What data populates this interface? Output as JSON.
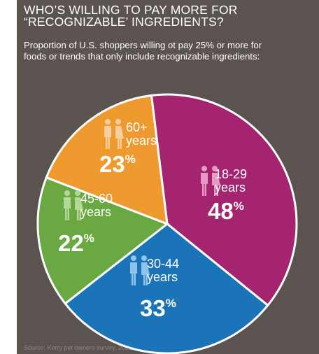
{
  "title_lines": [
    "WHO’S WILLING TO PAY MORE FOR",
    "“RECOGNIZABLE’ INGREDIENTS?"
  ],
  "subtitle_lines": [
    "Proportion of U.S. shoppers willing ot pay 25% or more for",
    "foods or trends that only include recognizable ingredients:"
  ],
  "source": "Source: Kerry pet owners survey, 2021",
  "colors": {
    "background": "#5b5350",
    "18-29": "#a4246f",
    "30-44": "#1b73b8",
    "45-60": "#6aa841",
    "60+": "#ee9a2e",
    "icon_18-29": "#e69ac4",
    "icon_30-44": "#8ec3ea",
    "icon_45-60": "#b5d79a",
    "icon_60+": "#f9cfa0"
  },
  "icons": [
    "people-icon"
  ],
  "chart_data": {
    "type": "pie",
    "title": "WHO’S WILLING TO PAY MORE FOR “RECOGNIZABLE’ INGREDIENTS?",
    "categories": [
      "18-29 years",
      "30-44 years",
      "45-60 years",
      "60+ years"
    ],
    "values": [
      48,
      33,
      22,
      23
    ],
    "unit": "%",
    "labels": [
      {
        "line1": "18-29",
        "line2": "years",
        "value": "48",
        "sign": "%"
      },
      {
        "line1": "30-44",
        "line2": "years",
        "value": "33",
        "sign": "%"
      },
      {
        "line1": "45-60",
        "line2": "years",
        "value": "22",
        "sign": "%"
      },
      {
        "line1": "60+",
        "line2": "years",
        "value": "23",
        "sign": "%"
      }
    ]
  }
}
